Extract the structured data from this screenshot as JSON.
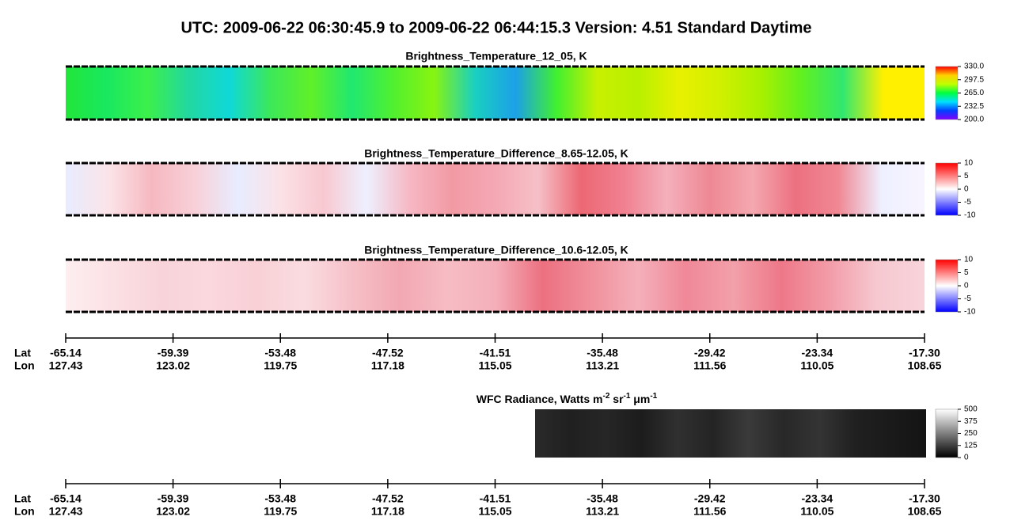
{
  "title": "UTC:  2009-06-22   06:30:45.9  to  2009-06-22   06:44:15.3    Version: 4.51  Standard Daytime",
  "chart_data": [
    {
      "type": "heatmap",
      "title": "Brightness_Temperature_12_05, K",
      "strip_colors": [
        "#22e63a",
        "#19e860",
        "#3cf04a",
        "#22d8a0",
        "#10d8d8",
        "#3ce85a",
        "#60f028",
        "#20e870",
        "#50f030",
        "#88f410",
        "#1ad0c0",
        "#1ca0e8",
        "#40f030",
        "#c8f000",
        "#b8f000",
        "#e8f000",
        "#d0f000",
        "#a8f000",
        "#60f020",
        "#30e870",
        "#fff000",
        "#fff000"
      ],
      "clim": [
        200,
        330
      ],
      "colorbar_colors": [
        "#8000ff",
        "#0040ff",
        "#00e0ff",
        "#00ff40",
        "#c0ff00",
        "#ffd000",
        "#ff0000"
      ],
      "colorbar_ticks": [
        {
          "value": 200,
          "label": "200.0"
        },
        232.5,
        {
          "value": 265,
          "label": "265.0"
        },
        297.5,
        {
          "value": 330,
          "label": "330.0"
        }
      ]
    },
    {
      "type": "heatmap",
      "title": "Brightness_Temperature_Difference_8.65-12.05, K",
      "strip_colors": [
        "#e8ecff",
        "#fbe4e8",
        "#f6b8c0",
        "#f8d0d8",
        "#e8ecff",
        "#fbe2e6",
        "#f8c8d0",
        "#eef0ff",
        "#f6b8c4",
        "#f29aa4",
        "#f4a8b4",
        "#f6c0c8",
        "#ec6874",
        "#f08090",
        "#f4b0bc",
        "#ee8894",
        "#f4a8b0",
        "#ec7080",
        "#f08894",
        "#eef0ff",
        "#f8f4ff"
      ],
      "clim": [
        -10,
        10
      ],
      "colorbar_colors": [
        "#0000ff",
        "#8080ff",
        "#ffffff",
        "#ff8080",
        "#ff0000"
      ],
      "colorbar_ticks": [
        -10,
        -5,
        0,
        5,
        10
      ]
    },
    {
      "type": "heatmap",
      "title": "Brightness_Temperature_Difference_10.6-12.05, K",
      "strip_colors": [
        "#fdeef0",
        "#fbe0e4",
        "#f8d4da",
        "#fad8de",
        "#f8d0d6",
        "#fadce0",
        "#f6c0c8",
        "#f2a8b2",
        "#f6bcc4",
        "#f4b0ba",
        "#ec7080",
        "#f0909c",
        "#f4b0ba",
        "#f08898",
        "#f2a0aa",
        "#ee7888",
        "#f29ca8",
        "#f6c8d0",
        "#f8d4da"
      ],
      "clim": [
        -10,
        10
      ],
      "colorbar_colors": [
        "#0000ff",
        "#8080ff",
        "#ffffff",
        "#ff8080",
        "#ff0000"
      ],
      "colorbar_ticks": [
        -10,
        -5,
        0,
        5,
        10
      ]
    },
    {
      "type": "heatmap",
      "title_parts": [
        "WFC Radiance, Watts m",
        "-2",
        " sr",
        "-1",
        " μm",
        "-1"
      ],
      "strip_colors": [
        "#2a2a2a",
        "#202020",
        "#262626",
        "#1c1c1c",
        "#303030",
        "#242424",
        "#3a3a3a",
        "#282828",
        "#343434",
        "#202020",
        "#1a1a1a",
        "#141414"
      ],
      "clim": [
        0,
        500
      ],
      "colorbar_colors": [
        "#000000",
        "#ffffff"
      ],
      "colorbar_ticks": [
        0,
        125,
        250,
        375,
        500
      ]
    }
  ],
  "x_axis": {
    "row_labels": [
      "Lat",
      "Lon"
    ],
    "lat": [
      -65.14,
      -59.39,
      -53.48,
      -47.52,
      -41.51,
      -35.48,
      -29.42,
      -23.34,
      {
        "value": -17.3,
        "label": "-17.30"
      }
    ],
    "lon": [
      127.43,
      123.02,
      119.75,
      117.18,
      115.05,
      113.21,
      111.56,
      110.05,
      108.65
    ]
  }
}
